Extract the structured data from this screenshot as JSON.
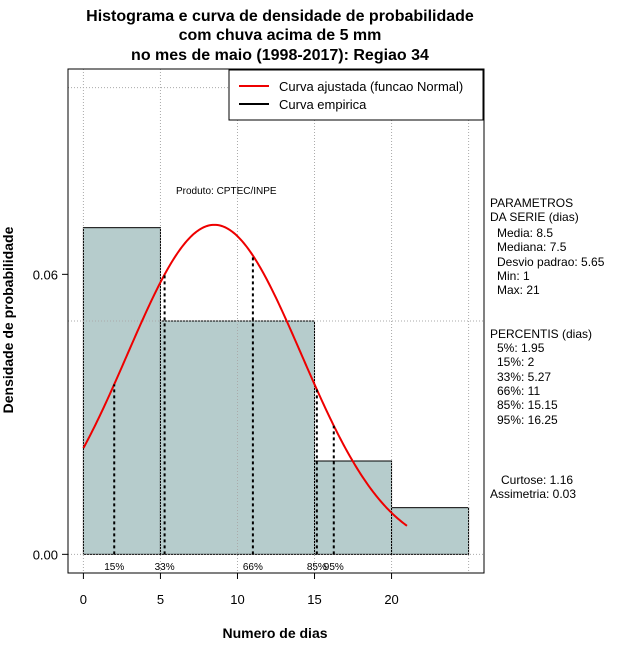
{
  "chart_data": {
    "type": "histogram",
    "title": [
      "Histograma e curva de densidade de probabilidade",
      "com chuva acima de 5 mm",
      "no mes de maio (1998-2017): Regiao 34"
    ],
    "xlabel": "Numero de dias",
    "ylabel": "Densidade de probabilidade",
    "xlim": [
      -1,
      26
    ],
    "ylim": [
      -0.004,
      0.104
    ],
    "xticks": [
      0,
      5,
      10,
      15,
      20
    ],
    "yticks": [
      0.0,
      0.06
    ],
    "ytick_labels": [
      "0.00",
      "0.06"
    ],
    "grid": true,
    "bars": [
      {
        "x0": 0,
        "x1": 5,
        "density": 0.07
      },
      {
        "x0": 5,
        "x1": 15,
        "density": 0.05
      },
      {
        "x0": 15,
        "x1": 20,
        "density": 0.02
      },
      {
        "x0": 20,
        "x1": 25,
        "density": 0.01
      }
    ],
    "bar_color": "#b6cccc",
    "normal_curve": {
      "mean": 8.5,
      "sd": 5.65,
      "x_from": 0,
      "x_to": 21,
      "color": "#ee0000"
    },
    "percentile_lines": [
      {
        "label": "15%",
        "x": 2
      },
      {
        "label": "33%",
        "x": 5.27
      },
      {
        "label": "66%",
        "x": 11
      },
      {
        "label": "85%",
        "x": 15.15
      },
      {
        "label": "95%",
        "x": 16.25
      }
    ],
    "legend": {
      "position": "top-right",
      "entries": [
        {
          "label": "Curva ajustada (funcao Normal)",
          "color": "#ee0000"
        },
        {
          "label": "Curva empirica",
          "color": "#000000"
        }
      ]
    },
    "annotation": "Produto: CPTEC/INPE"
  },
  "sidebar": {
    "params_title": "PARAMETROS\nDA SERIE (dias)",
    "params": [
      "Media: 8.5",
      "Mediana: 7.5",
      "Desvio padrao: 5.65",
      "Min: 1",
      "Max: 21"
    ],
    "percentis_title": "PERCENTIS (dias)",
    "percentis": [
      "5%: 1.95",
      "15%: 2",
      "33%: 5.27",
      "66%: 11",
      "85%: 15.15",
      "95%: 16.25"
    ],
    "curtose": "Curtose: 1.16",
    "assimetria": "Assimetria: 0.03"
  }
}
